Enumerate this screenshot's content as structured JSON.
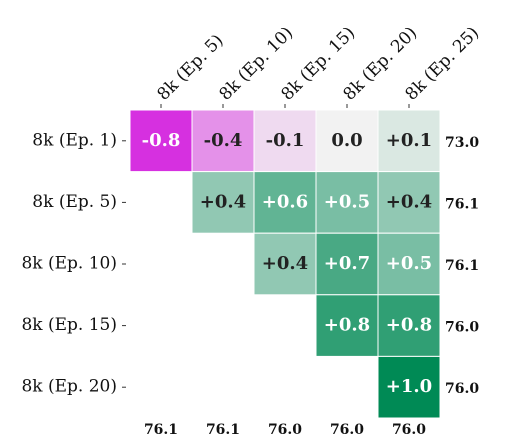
{
  "chart_data": {
    "type": "heatmap",
    "rows": [
      "8k (Ep. 1)",
      "8k (Ep. 5)",
      "8k (Ep. 10)",
      "8k (Ep. 15)",
      "8k (Ep. 20)"
    ],
    "columns": [
      "8k (Ep. 5)",
      "8k (Ep. 10)",
      "8k (Ep. 15)",
      "8k (Ep. 20)",
      "8k (Ep. 25)"
    ],
    "values": [
      [
        -0.8,
        -0.4,
        -0.1,
        0.0,
        0.1
      ],
      [
        null,
        0.4,
        0.6,
        0.5,
        0.4
      ],
      [
        null,
        null,
        0.4,
        0.7,
        0.5
      ],
      [
        null,
        null,
        null,
        0.8,
        0.8
      ],
      [
        null,
        null,
        null,
        null,
        1.0
      ]
    ],
    "value_labels": [
      [
        "-0.8",
        "-0.4",
        "-0.1",
        "0.0",
        "+0.1"
      ],
      [
        null,
        "+0.4",
        "+0.6",
        "+0.5",
        "+0.4"
      ],
      [
        null,
        null,
        "+0.4",
        "+0.7",
        "+0.5"
      ],
      [
        null,
        null,
        null,
        "+0.8",
        "+0.8"
      ],
      [
        null,
        null,
        null,
        null,
        "+1.0"
      ]
    ],
    "row_totals": [
      73.0,
      76.1,
      76.1,
      76.0,
      76.0
    ],
    "row_total_labels": [
      "73.0",
      "76.1",
      "76.1",
      "76.0",
      "76.0"
    ],
    "column_totals": [
      76.1,
      76.1,
      76.0,
      76.0,
      76.0
    ],
    "column_total_labels": [
      "76.1",
      "76.1",
      "76.0",
      "76.0",
      "76.0"
    ],
    "vlim": [
      -1,
      1
    ],
    "colors": {
      "low": "#cf00dc",
      "mid": "#f2f2f2",
      "high": "#008a55"
    }
  }
}
